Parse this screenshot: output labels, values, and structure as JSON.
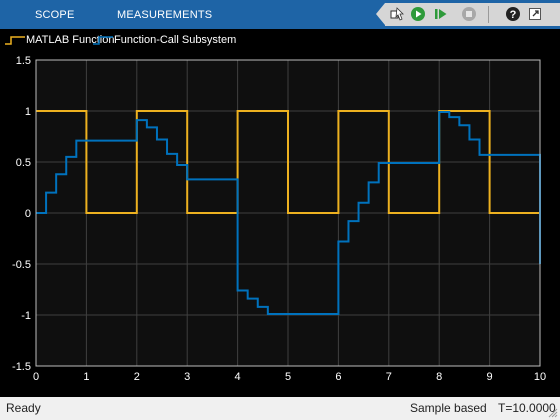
{
  "toolstrip": {
    "tabs": [
      "SCOPE",
      "MEASUREMENTS"
    ]
  },
  "quick_access": [
    "highlight-block-icon",
    "run-icon",
    "step-forward-icon",
    "stop-icon",
    "help-icon",
    "undock-icon"
  ],
  "legend": [
    {
      "label": "MATLAB Function",
      "color": "#edb120"
    },
    {
      "label": "Function-Call Subsystem",
      "color": "#0072bd"
    }
  ],
  "status": {
    "left": "Ready",
    "mode": "Sample based",
    "time": "T=10.0000"
  },
  "chart_data": {
    "type": "line",
    "step": true,
    "background": "#0f0f0f",
    "grid": true,
    "xlim": [
      0,
      10
    ],
    "ylim": [
      -1.5,
      1.5
    ],
    "xticks": [
      0,
      1,
      2,
      3,
      4,
      5,
      6,
      7,
      8,
      9,
      10
    ],
    "yticks": [
      -1.5,
      -1,
      -0.5,
      0,
      0.5,
      1,
      1.5
    ],
    "xtick_labels": [
      "0",
      "1",
      "2",
      "3",
      "4",
      "5",
      "6",
      "7",
      "8",
      "9",
      "10"
    ],
    "ytick_labels": [
      "-1.5",
      "-1",
      "-0.5",
      "0",
      "0.5",
      "1",
      "1.5"
    ],
    "series": [
      {
        "name": "MATLAB Function",
        "color": "#edb120",
        "points": [
          [
            0,
            1
          ],
          [
            1,
            0
          ],
          [
            2,
            1
          ],
          [
            3,
            0
          ],
          [
            4,
            1
          ],
          [
            5,
            0
          ],
          [
            6,
            1
          ],
          [
            7,
            0
          ],
          [
            8,
            1
          ],
          [
            9,
            0
          ],
          [
            10,
            0
          ]
        ]
      },
      {
        "name": "Function-Call Subsystem",
        "color": "#0072bd",
        "points": [
          [
            0,
            0
          ],
          [
            0.2,
            0.2
          ],
          [
            0.4,
            0.38
          ],
          [
            0.6,
            0.55
          ],
          [
            0.8,
            0.71
          ],
          [
            2,
            0.91
          ],
          [
            2.2,
            0.84
          ],
          [
            2.4,
            0.72
          ],
          [
            2.6,
            0.58
          ],
          [
            2.8,
            0.47
          ],
          [
            3,
            0.33
          ],
          [
            4,
            -0.76
          ],
          [
            4.2,
            -0.84
          ],
          [
            4.4,
            -0.92
          ],
          [
            4.6,
            -0.99
          ],
          [
            6,
            -0.28
          ],
          [
            6.2,
            -0.08
          ],
          [
            6.4,
            0.1
          ],
          [
            6.6,
            0.3
          ],
          [
            6.8,
            0.49
          ],
          [
            8,
            0.99
          ],
          [
            8.2,
            0.94
          ],
          [
            8.4,
            0.86
          ],
          [
            8.6,
            0.72
          ],
          [
            8.8,
            0.57
          ],
          [
            10,
            -0.5
          ]
        ]
      }
    ]
  }
}
